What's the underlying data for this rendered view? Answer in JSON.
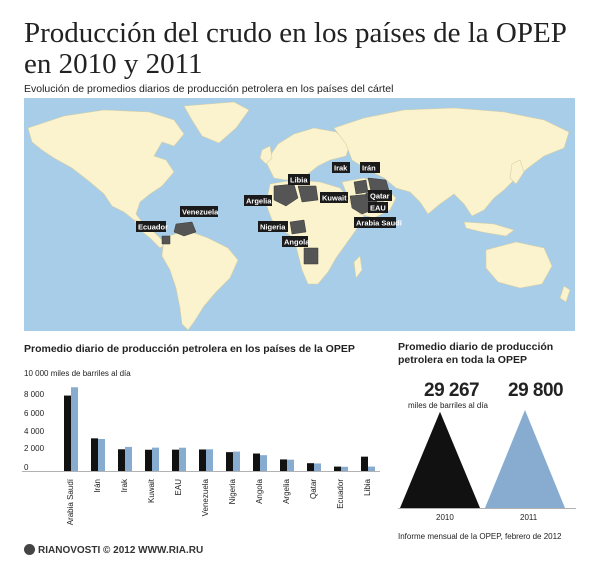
{
  "title": "Producción del crudo en los países de la OPEP en 2010 y 2011",
  "subtitle": "Evolución de promedios diarios de producción petrolera en los países del cártel",
  "map": {
    "countries": [
      "Irak",
      "Irán",
      "Libia",
      "Qatar",
      "Argelia",
      "Kuwait",
      "EAU",
      "Venezuela",
      "Arabia Saudí",
      "Ecuador",
      "Nigeria",
      "Angola"
    ],
    "colors": {
      "ocean": "#a8cde8",
      "land": "#fbf3cd",
      "highlight": "#555555"
    }
  },
  "bar_section": {
    "title": "Promedio diario de producción petrolera en los países de la OPEP",
    "unit_label": "10 000 miles de barriles al día",
    "ticks": [
      "8 000",
      "6 000",
      "4 000",
      "2 000",
      "0"
    ]
  },
  "total_section": {
    "title": "Promedio diario de producción petrolera en toda la OPEP",
    "value_2010": "29 267",
    "value_2011": "29 800",
    "unit": "miles de barriles al día",
    "year_2010": "2010",
    "year_2011": "2011"
  },
  "source": "Informe mensual de la OPEP, febrero de 2012",
  "footer": "RIANOVOSTI © 2012 WWW.RIA.RU",
  "chart_data": [
    {
      "type": "bar",
      "categories": [
        "Arabia Saudí",
        "Irán",
        "Irak",
        "Kuwait",
        "EAU",
        "Venezuela",
        "Nigeria",
        "Angola",
        "Argelia",
        "Qatar",
        "Ecuador",
        "Libia"
      ],
      "series": [
        {
          "name": "2010",
          "color": "#111111",
          "values": [
            8200,
            3550,
            2360,
            2310,
            2320,
            2340,
            2050,
            1900,
            1260,
            850,
            480,
            1560
          ]
        },
        {
          "name": "2011",
          "color": "#88acd0",
          "values": [
            9100,
            3480,
            2620,
            2540,
            2530,
            2360,
            2110,
            1720,
            1230,
            820,
            460,
            480
          ]
        }
      ],
      "ylim": [
        0,
        10000
      ],
      "ylabel": "10 000 miles de barriles al día"
    },
    {
      "type": "bar",
      "categories": [
        "2010",
        "2011"
      ],
      "values": [
        29267,
        29800
      ],
      "colors": [
        "#111111",
        "#88acd0"
      ],
      "ylabel": "miles de barriles al día"
    }
  ]
}
